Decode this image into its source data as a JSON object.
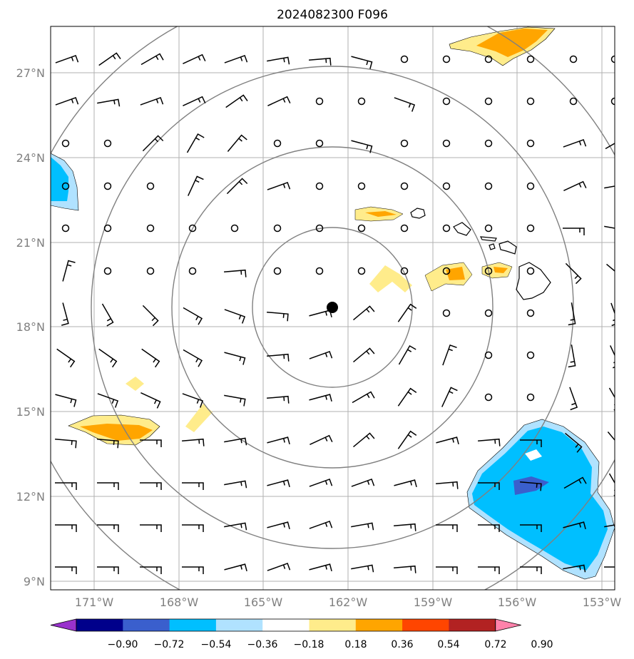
{
  "title": "2024082300 F096",
  "axes": {
    "longitude_labels": [
      "171°W",
      "168°W",
      "165°W",
      "162°W",
      "159°W",
      "156°W",
      "153°W"
    ],
    "latitude_labels": [
      "27°N",
      "24°N",
      "21°N",
      "18°N",
      "15°N",
      "12°N",
      "9°N"
    ]
  },
  "colorbar": {
    "tick_labels": [
      "−0.90",
      "−0.72",
      "−0.54",
      "−0.36",
      "−0.18",
      "0.18",
      "0.36",
      "0.54",
      "0.72",
      "0.90"
    ],
    "colors": [
      "#9932cc",
      "#00008b",
      "#3a5fcd",
      "#00bfff",
      "#b0e2ff",
      "#ffffff",
      "#ffec8b",
      "#ffa500",
      "#ff4500",
      "#b22222",
      "#ff82ab"
    ]
  },
  "map": {
    "storm_center_color": "#000000",
    "range_ring_color": "#808080",
    "gridline_color": "#b0b0b0",
    "land_outline_color": "#000000"
  }
}
